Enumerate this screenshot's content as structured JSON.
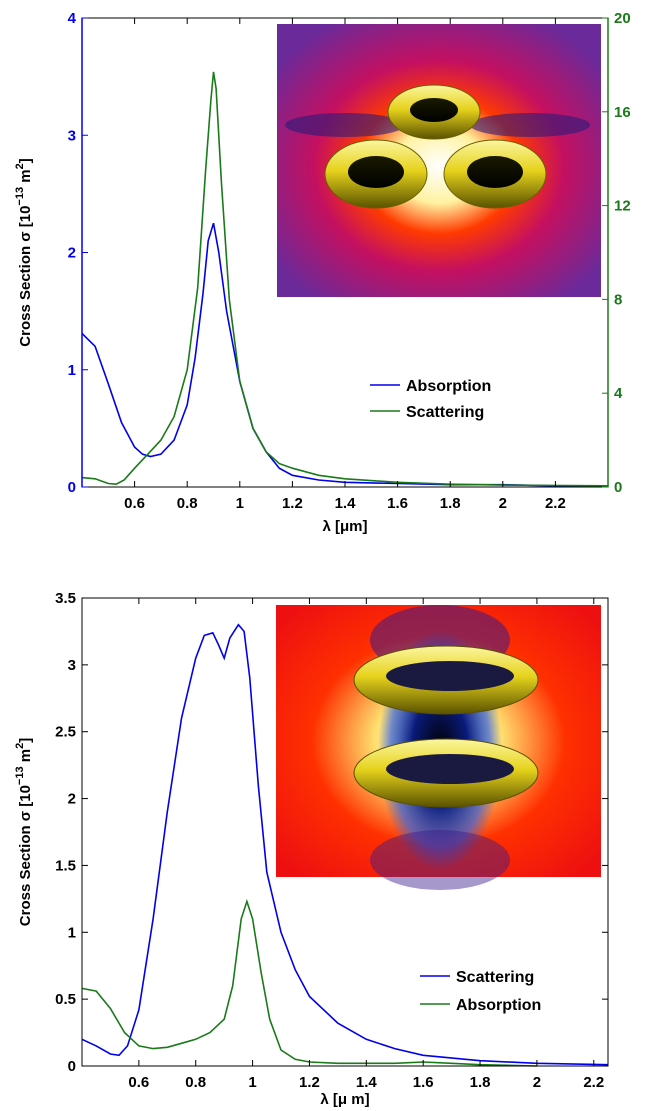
{
  "chart_data": [
    {
      "type": "line",
      "xlabel": "λ [μm]",
      "ylabel": "Cross Section σ [10−13 m2]",
      "xlim": [
        0.4,
        2.4
      ],
      "ylim": [
        0,
        4
      ],
      "ylim_right": [
        0,
        20
      ],
      "xticks": [
        "0.6",
        "0.8",
        "1",
        "1.2",
        "1.4",
        "1.6",
        "1.8",
        "2",
        "2.2"
      ],
      "yticks": [
        "0",
        "1",
        "2",
        "3",
        "4"
      ],
      "yticks_right": [
        "0",
        "4",
        "8",
        "12",
        "16",
        "20"
      ],
      "legend_position": "center-right",
      "inset": "three yellow tori in a triangle over a field map",
      "series": [
        {
          "name": "Absorption",
          "axis": "left",
          "color": "#0000ee",
          "x": [
            0.4,
            0.45,
            0.5,
            0.55,
            0.6,
            0.63,
            0.66,
            0.7,
            0.75,
            0.8,
            0.83,
            0.86,
            0.88,
            0.9,
            0.92,
            0.95,
            1.0,
            1.05,
            1.1,
            1.15,
            1.2,
            1.3,
            1.4,
            1.6,
            1.8,
            2.0,
            2.2,
            2.4
          ],
          "y": [
            1.31,
            1.2,
            0.88,
            0.55,
            0.34,
            0.28,
            0.26,
            0.28,
            0.4,
            0.7,
            1.1,
            1.65,
            2.1,
            2.25,
            2.0,
            1.5,
            0.9,
            0.5,
            0.3,
            0.16,
            0.1,
            0.06,
            0.04,
            0.03,
            0.02,
            0.02,
            0.01,
            0.01
          ]
        },
        {
          "name": "Scattering",
          "axis": "right",
          "color": "#1a7a1a",
          "x": [
            0.4,
            0.45,
            0.5,
            0.53,
            0.56,
            0.6,
            0.65,
            0.7,
            0.75,
            0.8,
            0.84,
            0.87,
            0.89,
            0.9,
            0.91,
            0.93,
            0.96,
            1.0,
            1.05,
            1.1,
            1.15,
            1.2,
            1.3,
            1.4,
            1.6,
            1.8,
            2.0,
            2.4
          ],
          "y": [
            0.4,
            0.35,
            0.15,
            0.12,
            0.3,
            0.8,
            1.4,
            2.0,
            3.0,
            5.0,
            8.5,
            13.5,
            16.5,
            17.7,
            17.0,
            13.0,
            8.0,
            4.5,
            2.5,
            1.5,
            1.0,
            0.8,
            0.5,
            0.35,
            0.2,
            0.12,
            0.08,
            0.05
          ]
        }
      ]
    },
    {
      "type": "line",
      "xlabel": "λ [μ m]",
      "ylabel": "Cross Section σ [10−13 m2]",
      "xlim": [
        0.4,
        2.25
      ],
      "ylim": [
        0,
        3.5
      ],
      "xticks": [
        "0.6",
        "0.8",
        "1",
        "1.2",
        "1.4",
        "1.6",
        "1.8",
        "2",
        "2.2"
      ],
      "yticks": [
        "0",
        "0.5",
        "1",
        "1.5",
        "2",
        "2.5",
        "3",
        "3.5"
      ],
      "legend_position": "lower-right",
      "inset": "two stacked yellow tori over a field map",
      "series": [
        {
          "name": "Scattering",
          "color": "#0000ee",
          "x": [
            0.4,
            0.45,
            0.5,
            0.53,
            0.56,
            0.6,
            0.65,
            0.7,
            0.75,
            0.8,
            0.83,
            0.86,
            0.88,
            0.9,
            0.92,
            0.95,
            0.97,
            0.99,
            1.02,
            1.05,
            1.1,
            1.15,
            1.2,
            1.3,
            1.4,
            1.5,
            1.6,
            1.8,
            2.0,
            2.25
          ],
          "y": [
            0.2,
            0.15,
            0.09,
            0.08,
            0.15,
            0.42,
            1.1,
            1.9,
            2.6,
            3.05,
            3.22,
            3.24,
            3.15,
            3.05,
            3.2,
            3.3,
            3.25,
            2.9,
            2.1,
            1.45,
            1.0,
            0.72,
            0.52,
            0.32,
            0.2,
            0.13,
            0.08,
            0.04,
            0.02,
            0.01
          ]
        },
        {
          "name": "Absorption",
          "color": "#1a7a1a",
          "x": [
            0.4,
            0.45,
            0.5,
            0.55,
            0.6,
            0.65,
            0.7,
            0.75,
            0.8,
            0.85,
            0.9,
            0.93,
            0.96,
            0.98,
            1.0,
            1.03,
            1.06,
            1.1,
            1.15,
            1.2,
            1.3,
            1.4,
            1.5,
            1.6,
            1.7,
            1.8,
            2.0
          ],
          "y": [
            0.58,
            0.56,
            0.43,
            0.25,
            0.15,
            0.13,
            0.14,
            0.17,
            0.2,
            0.25,
            0.35,
            0.6,
            1.1,
            1.23,
            1.1,
            0.7,
            0.35,
            0.12,
            0.05,
            0.03,
            0.02,
            0.02,
            0.02,
            0.03,
            0.02,
            0.01,
            0.0
          ]
        }
      ]
    }
  ]
}
